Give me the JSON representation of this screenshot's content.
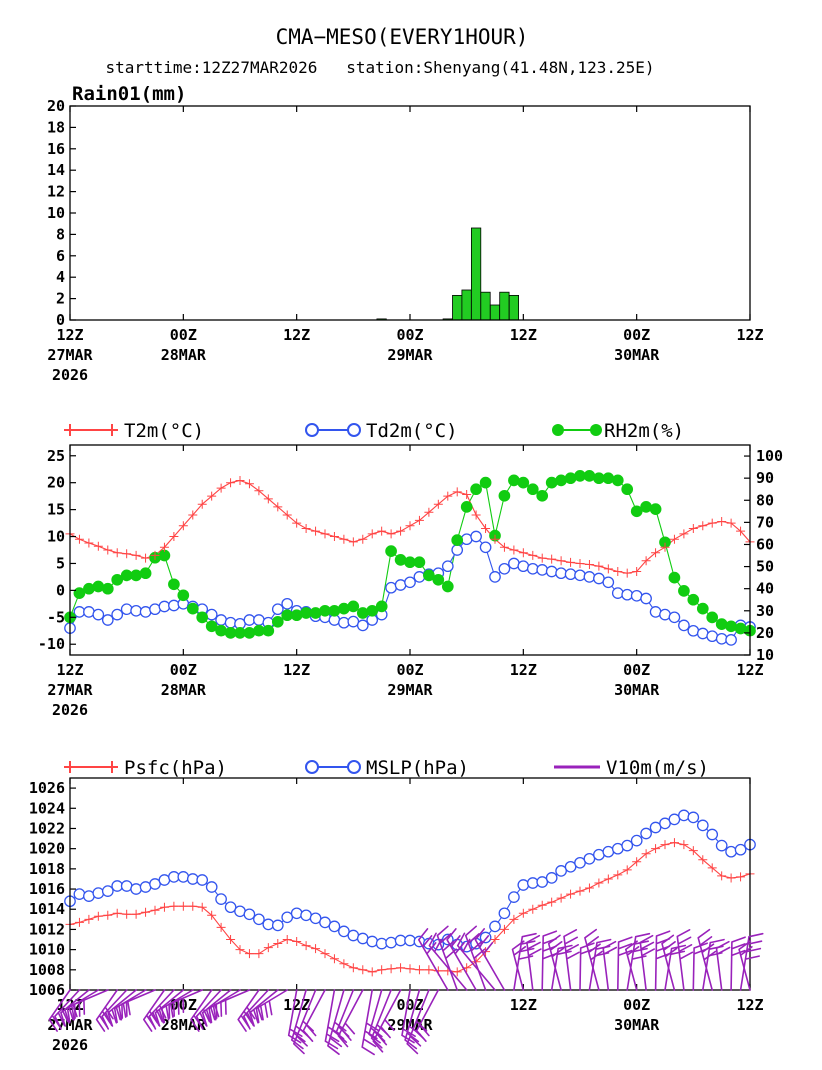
{
  "header": {
    "title": "CMA−MESO(EVERY1HOUR)",
    "subtitle": "starttime:12Z27MAR2026   station:Shenyang(41.48N,123.25E)"
  },
  "x_axis": {
    "hours_range": [
      0,
      72
    ],
    "ticks": [
      {
        "hour": 0,
        "line1": "12Z",
        "line2": "27MAR",
        "line3": "2026"
      },
      {
        "hour": 12,
        "line1": "00Z",
        "line2": "28MAR",
        "line3": ""
      },
      {
        "hour": 24,
        "line1": "12Z",
        "line2": "",
        "line3": ""
      },
      {
        "hour": 36,
        "line1": "00Z",
        "line2": "29MAR",
        "line3": ""
      },
      {
        "hour": 48,
        "line1": "12Z",
        "line2": "",
        "line3": ""
      },
      {
        "hour": 60,
        "line1": "00Z",
        "line2": "30MAR",
        "line3": ""
      },
      {
        "hour": 72,
        "line1": "12Z",
        "line2": "",
        "line3": ""
      }
    ]
  },
  "colors": {
    "rain": "#22cc22",
    "t2m": "#ff4444",
    "td2m": "#3355ee",
    "rh2m": "#11cc11",
    "psfc": "#ff4444",
    "mslp": "#3355ee",
    "wind": "#9922bb"
  },
  "chart_data": [
    {
      "type": "bar",
      "panel_label": "Rain01(mm)",
      "x_unit": "hours since 12Z27MAR2026",
      "ylim": [
        0,
        20
      ],
      "yticks": [
        0,
        2,
        4,
        6,
        8,
        10,
        12,
        14,
        16,
        18,
        20
      ],
      "series": [
        {
          "name": "Rain01(mm)",
          "x": [
            33,
            40,
            41,
            42,
            43,
            44,
            45,
            46,
            47
          ],
          "values": [
            0.1,
            0.1,
            2.3,
            2.8,
            8.6,
            2.6,
            1.4,
            2.6,
            2.3
          ]
        }
      ]
    },
    {
      "type": "line",
      "x_unit": "hours since 12Z27MAR2026",
      "ylim_left": [
        -12,
        27
      ],
      "yticks_left": [
        -10,
        -5,
        0,
        5,
        10,
        15,
        20,
        25
      ],
      "ylim_right": [
        10,
        105
      ],
      "yticks_right": [
        10,
        20,
        30,
        40,
        50,
        60,
        70,
        80,
        90,
        100
      ],
      "legend": [
        "T2m(°C)",
        "Td2m(°C)",
        "RH2m(%)"
      ],
      "series": [
        {
          "name": "T2m(°C)",
          "axis": "left",
          "x": [
            0,
            1,
            2,
            3,
            4,
            5,
            6,
            7,
            8,
            9,
            10,
            11,
            12,
            13,
            14,
            15,
            16,
            17,
            18,
            19,
            20,
            21,
            22,
            23,
            24,
            25,
            26,
            27,
            28,
            29,
            30,
            31,
            32,
            33,
            34,
            35,
            36,
            37,
            38,
            39,
            40,
            41,
            42,
            43,
            44,
            45,
            46,
            47,
            48,
            49,
            50,
            51,
            52,
            53,
            54,
            55,
            56,
            57,
            58,
            59,
            60,
            61,
            62,
            63,
            64,
            65,
            66,
            67,
            68,
            69,
            70,
            71,
            72
          ],
          "values": [
            10.5,
            9.5,
            8.8,
            8.2,
            7.5,
            7.0,
            6.8,
            6.5,
            6.0,
            6.5,
            8.0,
            10.0,
            12.0,
            14.0,
            16.0,
            17.5,
            19.0,
            20.0,
            20.4,
            19.8,
            18.5,
            17.0,
            15.5,
            14.0,
            12.5,
            11.5,
            11.0,
            10.5,
            10.0,
            9.5,
            9.0,
            9.5,
            10.5,
            11.0,
            10.5,
            11.0,
            12.0,
            13.0,
            14.5,
            16.0,
            17.5,
            18.3,
            17.8,
            14.0,
            11.5,
            9.5,
            8.0,
            7.5,
            7.0,
            6.5,
            6.0,
            5.8,
            5.5,
            5.2,
            5.0,
            4.8,
            4.5,
            4.0,
            3.5,
            3.2,
            3.5,
            5.5,
            7.0,
            8.0,
            9.5,
            10.5,
            11.5,
            12.0,
            12.5,
            12.8,
            12.5,
            11.0,
            9.0
          ]
        },
        {
          "name": "Td2m(°C)",
          "axis": "left",
          "x": [
            0,
            1,
            2,
            3,
            4,
            5,
            6,
            7,
            8,
            9,
            10,
            11,
            12,
            13,
            14,
            15,
            16,
            17,
            18,
            19,
            20,
            21,
            22,
            23,
            24,
            25,
            26,
            27,
            28,
            29,
            30,
            31,
            32,
            33,
            34,
            35,
            36,
            37,
            38,
            39,
            40,
            41,
            42,
            43,
            44,
            45,
            46,
            47,
            48,
            49,
            50,
            51,
            52,
            53,
            54,
            55,
            56,
            57,
            58,
            59,
            60,
            61,
            62,
            63,
            64,
            65,
            66,
            67,
            68,
            69,
            70,
            71,
            72
          ],
          "values": [
            -7.0,
            -4.0,
            -4.0,
            -4.5,
            -5.5,
            -4.5,
            -3.5,
            -3.8,
            -4.0,
            -3.5,
            -3.0,
            -2.8,
            -2.5,
            -3.0,
            -3.5,
            -4.5,
            -5.5,
            -6.0,
            -6.2,
            -5.5,
            -5.5,
            -6.0,
            -3.5,
            -2.5,
            -3.8,
            -4.0,
            -4.8,
            -5.0,
            -5.5,
            -6.0,
            -5.8,
            -6.5,
            -5.5,
            -4.5,
            0.5,
            1.0,
            1.5,
            2.5,
            3.0,
            3.2,
            4.5,
            7.5,
            9.5,
            10.0,
            8.0,
            2.5,
            4.0,
            5.0,
            4.5,
            4.0,
            3.8,
            3.5,
            3.2,
            3.0,
            2.8,
            2.5,
            2.2,
            1.5,
            -0.5,
            -0.8,
            -1.0,
            -1.5,
            -4.0,
            -4.5,
            -5.0,
            -6.5,
            -7.5,
            -8.0,
            -8.5,
            -9.0,
            -9.2,
            -6.5,
            -6.8
          ]
        },
        {
          "name": "RH2m(%)",
          "axis": "right",
          "x": [
            0,
            1,
            2,
            3,
            4,
            5,
            6,
            7,
            8,
            9,
            10,
            11,
            12,
            13,
            14,
            15,
            16,
            17,
            18,
            19,
            20,
            21,
            22,
            23,
            24,
            25,
            26,
            27,
            28,
            29,
            30,
            31,
            32,
            33,
            34,
            35,
            36,
            37,
            38,
            39,
            40,
            41,
            42,
            43,
            44,
            45,
            46,
            47,
            48,
            49,
            50,
            51,
            52,
            53,
            54,
            55,
            56,
            57,
            58,
            59,
            60,
            61,
            62,
            63,
            64,
            65,
            66,
            67,
            68,
            69,
            70,
            71,
            72
          ],
          "values": [
            27,
            38,
            40,
            41,
            40,
            44,
            46,
            46,
            47,
            54,
            55,
            42,
            37,
            31,
            27,
            23,
            21,
            20,
            20,
            20,
            21,
            21,
            25,
            28,
            28,
            29,
            29,
            30,
            30,
            31,
            32,
            29,
            30,
            32,
            57,
            53,
            52,
            52,
            46,
            44,
            41,
            62,
            77,
            85,
            88,
            64,
            82,
            89,
            88,
            85,
            82,
            88,
            89,
            90,
            91,
            91,
            90,
            90,
            89,
            85,
            75,
            77,
            76,
            61,
            45,
            39,
            35,
            31,
            27,
            24,
            23,
            22,
            21
          ]
        }
      ]
    },
    {
      "type": "line",
      "x_unit": "hours since 12Z27MAR2026",
      "ylim": [
        1006,
        1027
      ],
      "yticks": [
        1006,
        1008,
        1010,
        1012,
        1014,
        1016,
        1018,
        1020,
        1022,
        1024,
        1026
      ],
      "legend": [
        "Psfc(hPa)",
        "MSLP(hPa)",
        "V10m(m/s)"
      ],
      "series": [
        {
          "name": "Psfc(hPa)",
          "x": [
            0,
            1,
            2,
            3,
            4,
            5,
            6,
            7,
            8,
            9,
            10,
            11,
            12,
            13,
            14,
            15,
            16,
            17,
            18,
            19,
            20,
            21,
            22,
            23,
            24,
            25,
            26,
            27,
            28,
            29,
            30,
            31,
            32,
            33,
            34,
            35,
            36,
            37,
            38,
            39,
            40,
            41,
            42,
            43,
            44,
            45,
            46,
            47,
            48,
            49,
            50,
            51,
            52,
            53,
            54,
            55,
            56,
            57,
            58,
            59,
            60,
            61,
            62,
            63,
            64,
            65,
            66,
            67,
            68,
            69,
            70,
            71,
            72
          ],
          "values": [
            1012.5,
            1012.7,
            1013.0,
            1013.3,
            1013.4,
            1013.6,
            1013.5,
            1013.5,
            1013.7,
            1013.9,
            1014.2,
            1014.3,
            1014.3,
            1014.3,
            1014.2,
            1013.4,
            1012.2,
            1011.0,
            1010.0,
            1009.6,
            1009.6,
            1010.2,
            1010.6,
            1011.0,
            1010.8,
            1010.4,
            1010.1,
            1009.6,
            1009.1,
            1008.6,
            1008.2,
            1008.0,
            1007.8,
            1008.0,
            1008.1,
            1008.2,
            1008.1,
            1008.0,
            1008.0,
            1007.9,
            1007.9,
            1007.8,
            1008.2,
            1008.8,
            1009.8,
            1011.0,
            1012.0,
            1013.0,
            1013.6,
            1014.0,
            1014.4,
            1014.7,
            1015.1,
            1015.5,
            1015.8,
            1016.1,
            1016.6,
            1017.0,
            1017.4,
            1017.9,
            1018.7,
            1019.5,
            1020.0,
            1020.4,
            1020.6,
            1020.4,
            1019.8,
            1018.9,
            1018.1,
            1017.3,
            1017.1,
            1017.2,
            1017.5
          ]
        },
        {
          "name": "MSLP(hPa)",
          "x": [
            0,
            1,
            2,
            3,
            4,
            5,
            6,
            7,
            8,
            9,
            10,
            11,
            12,
            13,
            14,
            15,
            16,
            17,
            18,
            19,
            20,
            21,
            22,
            23,
            24,
            25,
            26,
            27,
            28,
            29,
            30,
            31,
            32,
            33,
            34,
            35,
            36,
            37,
            38,
            39,
            40,
            41,
            42,
            43,
            44,
            45,
            46,
            47,
            48,
            49,
            50,
            51,
            52,
            53,
            54,
            55,
            56,
            57,
            58,
            59,
            60,
            61,
            62,
            63,
            64,
            65,
            66,
            67,
            68,
            69,
            70,
            71,
            72
          ],
          "values": [
            1014.8,
            1015.5,
            1015.3,
            1015.6,
            1015.8,
            1016.3,
            1016.3,
            1016.0,
            1016.2,
            1016.5,
            1016.9,
            1017.2,
            1017.2,
            1017.0,
            1016.9,
            1016.2,
            1015.0,
            1014.2,
            1013.8,
            1013.5,
            1013.0,
            1012.5,
            1012.4,
            1013.2,
            1013.6,
            1013.4,
            1013.1,
            1012.7,
            1012.3,
            1011.8,
            1011.4,
            1011.1,
            1010.8,
            1010.6,
            1010.7,
            1010.9,
            1010.9,
            1010.8,
            1010.6,
            1010.5,
            1011.0,
            1010.5,
            1010.3,
            1010.6,
            1011.2,
            1012.3,
            1013.6,
            1015.2,
            1016.4,
            1016.6,
            1016.7,
            1017.1,
            1017.8,
            1018.2,
            1018.6,
            1019.0,
            1019.4,
            1019.7,
            1020.0,
            1020.3,
            1020.8,
            1021.5,
            1022.1,
            1022.5,
            1022.9,
            1023.3,
            1023.1,
            1022.3,
            1021.4,
            1020.3,
            1019.7,
            1019.9,
            1020.4
          ]
        }
      ]
    }
  ]
}
